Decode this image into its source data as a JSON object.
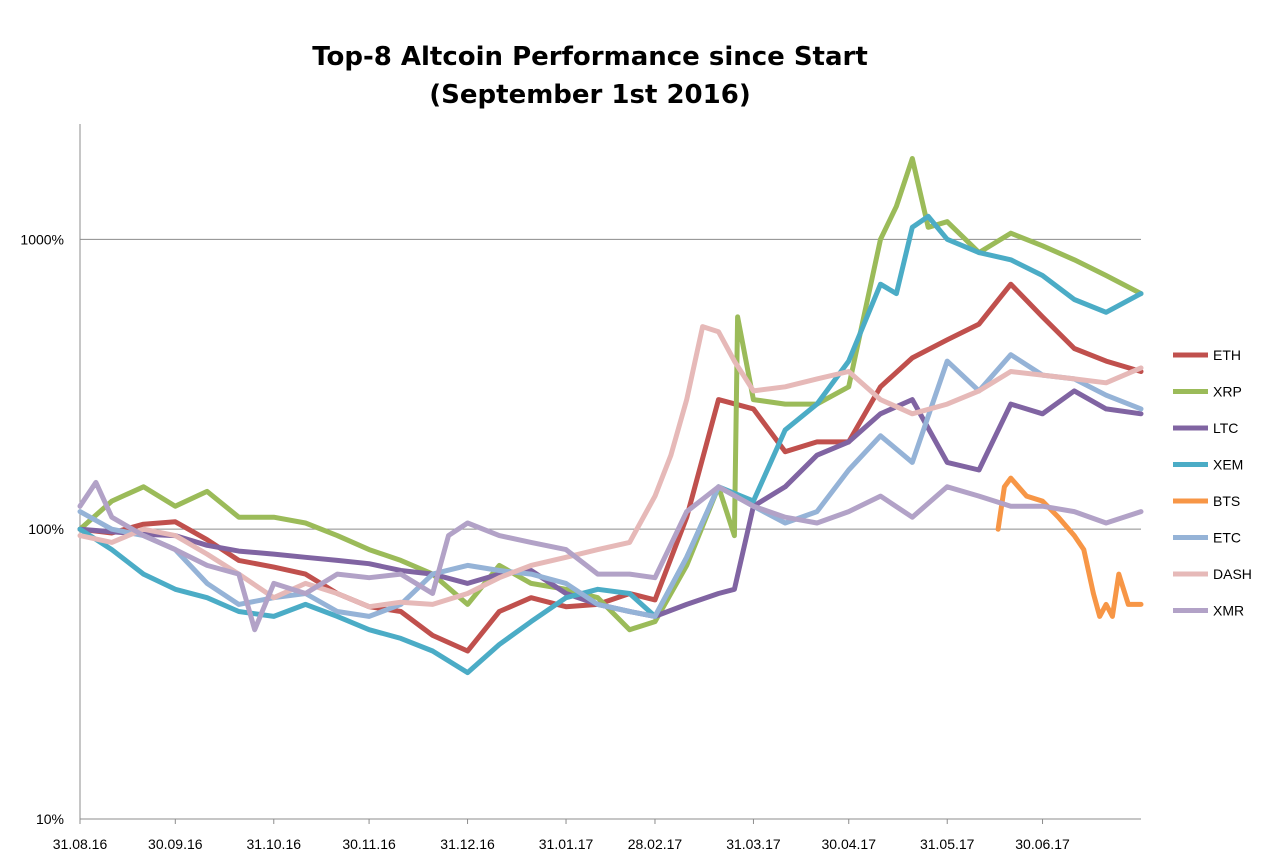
{
  "chart_data": {
    "type": "line",
    "title": [
      "Top-8 Altcoin Performance since Start",
      "(September 1st 2016)"
    ],
    "xlabel": "",
    "ylabel": "",
    "y_scale": "log",
    "ylim": [
      "10%",
      "2500%"
    ],
    "y_ticks": [
      "10%",
      "100%",
      "1000%"
    ],
    "x_ticks": [
      "31.08.16",
      "30.09.16",
      "31.10.16",
      "30.11.16",
      "31.12.16",
      "31.01.17",
      "28.02.17",
      "31.03.17",
      "30.04.17",
      "31.05.17",
      "30.06.17"
    ],
    "x_range": [
      "31.08.16",
      "31.07.17"
    ],
    "grid": "horizontal major only",
    "legend_position": "right",
    "y_unit": "percent of start value",
    "series": [
      {
        "name": "ETH",
        "color": "#C0504D",
        "x": [
          "31.08.16",
          "10.09.16",
          "20.09.16",
          "30.09.16",
          "10.10.16",
          "20.10.16",
          "31.10.16",
          "10.11.16",
          "20.11.16",
          "30.11.16",
          "10.12.16",
          "20.12.16",
          "31.12.16",
          "10.01.17",
          "20.01.17",
          "31.01.17",
          "10.02.17",
          "20.02.17",
          "28.02.17",
          "10.03.17",
          "20.03.17",
          "31.03.17",
          "10.04.17",
          "20.04.17",
          "30.04.17",
          "10.05.17",
          "20.05.17",
          "31.05.17",
          "10.06.17",
          "20.06.17",
          "30.06.17",
          "10.07.17",
          "20.07.17",
          "31.07.17"
        ],
        "y": [
          100,
          97,
          104,
          106,
          92,
          78,
          74,
          70,
          60,
          54,
          52,
          43,
          38,
          52,
          58,
          54,
          55,
          60,
          57,
          110,
          280,
          260,
          185,
          200,
          200,
          310,
          390,
          450,
          510,
          700,
          540,
          420,
          380,
          350
        ]
      },
      {
        "name": "XRP",
        "color": "#9BBB59",
        "x": [
          "31.08.16",
          "10.09.16",
          "20.09.16",
          "30.09.16",
          "10.10.16",
          "20.10.16",
          "31.10.16",
          "10.11.16",
          "20.11.16",
          "30.11.16",
          "10.12.16",
          "20.12.16",
          "31.12.16",
          "10.01.17",
          "20.01.17",
          "31.01.17",
          "10.02.17",
          "20.02.17",
          "28.02.17",
          "10.03.17",
          "20.03.17",
          "25.03.17",
          "26.03.17",
          "31.03.17",
          "10.04.17",
          "20.04.17",
          "30.04.17",
          "10.05.17",
          "15.05.17",
          "20.05.17",
          "25.05.17",
          "31.05.17",
          "10.06.17",
          "20.06.17",
          "30.06.17",
          "10.07.17",
          "20.07.17",
          "31.07.17"
        ],
        "y": [
          100,
          125,
          140,
          120,
          135,
          110,
          110,
          105,
          95,
          85,
          78,
          70,
          55,
          75,
          65,
          62,
          58,
          45,
          48,
          75,
          140,
          95,
          540,
          280,
          270,
          270,
          310,
          1000,
          1300,
          1900,
          1100,
          1150,
          900,
          1050,
          950,
          850,
          750,
          650
        ]
      },
      {
        "name": "LTC",
        "color": "#8064A2",
        "x": [
          "31.08.16",
          "10.09.16",
          "20.09.16",
          "30.09.16",
          "10.10.16",
          "20.10.16",
          "31.10.16",
          "10.11.16",
          "20.11.16",
          "30.11.16",
          "10.12.16",
          "20.12.16",
          "31.12.16",
          "10.01.17",
          "20.01.17",
          "31.01.17",
          "10.02.17",
          "20.02.17",
          "28.02.17",
          "10.03.17",
          "20.03.17",
          "25.03.17",
          "31.03.17",
          "10.04.17",
          "20.04.17",
          "30.04.17",
          "10.05.17",
          "20.05.17",
          "31.05.17",
          "10.06.17",
          "20.06.17",
          "30.06.17",
          "10.07.17",
          "20.07.17",
          "31.07.17"
        ],
        "y": [
          100,
          98,
          96,
          95,
          88,
          84,
          82,
          80,
          78,
          76,
          72,
          70,
          65,
          70,
          72,
          60,
          55,
          52,
          50,
          55,
          60,
          62,
          120,
          140,
          180,
          200,
          250,
          280,
          170,
          160,
          270,
          250,
          300,
          260,
          250
        ]
      },
      {
        "name": "XEM",
        "color": "#4BACC6",
        "x": [
          "31.08.16",
          "10.09.16",
          "20.09.16",
          "30.09.16",
          "10.10.16",
          "20.10.16",
          "31.10.16",
          "10.11.16",
          "20.11.16",
          "30.11.16",
          "10.12.16",
          "20.12.16",
          "31.12.16",
          "10.01.17",
          "20.01.17",
          "31.01.17",
          "10.02.17",
          "20.02.17",
          "28.02.17",
          "10.03.17",
          "20.03.17",
          "31.03.17",
          "10.04.17",
          "20.04.17",
          "30.04.17",
          "10.05.17",
          "15.05.17",
          "20.05.17",
          "25.05.17",
          "31.05.17",
          "10.06.17",
          "20.06.17",
          "30.06.17",
          "10.07.17",
          "20.07.17",
          "31.07.17"
        ],
        "y": [
          100,
          85,
          70,
          62,
          58,
          52,
          50,
          55,
          50,
          45,
          42,
          38,
          32,
          40,
          48,
          58,
          62,
          60,
          50,
          80,
          140,
          125,
          220,
          270,
          380,
          700,
          650,
          1100,
          1200,
          1000,
          900,
          850,
          750,
          620,
          560,
          650
        ]
      },
      {
        "name": "BTS",
        "color": "#F79646",
        "x": [
          "16.06.17",
          "18.06.17",
          "20.06.17",
          "25.06.17",
          "30.06.17",
          "05.07.17",
          "10.07.17",
          "13.07.17",
          "16.07.17",
          "18.07.17",
          "20.07.17",
          "22.07.17",
          "24.07.17",
          "27.07.17",
          "31.07.17"
        ],
        "y": [
          100,
          140,
          150,
          130,
          125,
          110,
          95,
          85,
          60,
          50,
          55,
          50,
          70,
          55,
          55
        ]
      },
      {
        "name": "ETC",
        "color": "#95B3D7",
        "x": [
          "31.08.16",
          "10.09.16",
          "20.09.16",
          "30.09.16",
          "10.10.16",
          "20.10.16",
          "31.10.16",
          "10.11.16",
          "20.11.16",
          "30.11.16",
          "10.12.16",
          "20.12.16",
          "31.12.16",
          "10.01.17",
          "20.01.17",
          "31.01.17",
          "10.02.17",
          "20.02.17",
          "28.02.17",
          "10.03.17",
          "20.03.17",
          "31.03.17",
          "10.04.17",
          "20.04.17",
          "30.04.17",
          "10.05.17",
          "20.05.17",
          "31.05.17",
          "10.06.17",
          "20.06.17",
          "30.06.17",
          "10.07.17",
          "20.07.17",
          "31.07.17"
        ],
        "y": [
          115,
          100,
          95,
          85,
          65,
          55,
          58,
          60,
          52,
          50,
          55,
          70,
          75,
          72,
          70,
          65,
          55,
          52,
          50,
          80,
          140,
          120,
          105,
          115,
          160,
          210,
          170,
          380,
          300,
          400,
          340,
          330,
          290,
          260
        ]
      },
      {
        "name": "DASH",
        "color": "#E6B9B8",
        "x": [
          "31.08.16",
          "10.09.16",
          "20.09.16",
          "30.09.16",
          "10.10.16",
          "20.10.16",
          "31.10.16",
          "10.11.16",
          "20.11.16",
          "30.11.16",
          "10.12.16",
          "20.12.16",
          "31.12.16",
          "10.01.17",
          "20.01.17",
          "31.01.17",
          "10.02.17",
          "20.02.17",
          "28.02.17",
          "05.03.17",
          "10.03.17",
          "15.03.17",
          "20.03.17",
          "25.03.17",
          "31.03.17",
          "10.04.17",
          "20.04.17",
          "30.04.17",
          "10.05.17",
          "20.05.17",
          "31.05.17",
          "10.06.17",
          "20.06.17",
          "30.06.17",
          "10.07.17",
          "20.07.17",
          "31.07.17"
        ],
        "y": [
          95,
          90,
          100,
          95,
          82,
          70,
          58,
          65,
          60,
          54,
          56,
          55,
          60,
          68,
          75,
          80,
          85,
          90,
          130,
          180,
          280,
          500,
          480,
          380,
          300,
          310,
          330,
          350,
          280,
          250,
          270,
          300,
          350,
          340,
          330,
          320,
          360
        ]
      },
      {
        "name": "XMR",
        "color": "#B2A2C7",
        "x": [
          "31.08.16",
          "05.09.16",
          "10.09.16",
          "20.09.16",
          "30.09.16",
          "10.10.16",
          "20.10.16",
          "25.10.16",
          "31.10.16",
          "10.11.16",
          "20.11.16",
          "30.11.16",
          "10.12.16",
          "20.12.16",
          "25.12.16",
          "31.12.16",
          "10.01.17",
          "20.01.17",
          "31.01.17",
          "10.02.17",
          "20.02.17",
          "28.02.17",
          "10.03.17",
          "20.03.17",
          "31.03.17",
          "10.04.17",
          "20.04.17",
          "30.04.17",
          "10.05.17",
          "20.05.17",
          "31.05.17",
          "10.06.17",
          "20.06.17",
          "30.06.17",
          "10.07.17",
          "20.07.17",
          "31.07.17"
        ],
        "y": [
          120,
          145,
          110,
          95,
          85,
          75,
          70,
          45,
          65,
          60,
          70,
          68,
          70,
          60,
          95,
          105,
          95,
          90,
          85,
          70,
          70,
          68,
          115,
          140,
          120,
          110,
          105,
          115,
          130,
          110,
          140,
          130,
          120,
          120,
          115,
          105,
          115
        ]
      }
    ]
  }
}
